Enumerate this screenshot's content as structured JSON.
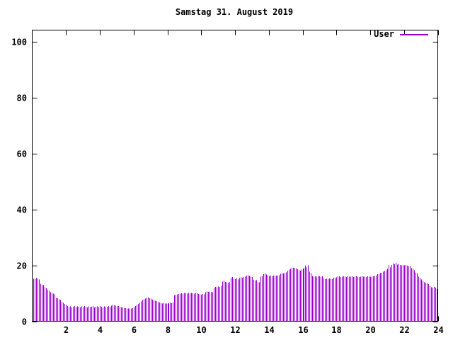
{
  "window": {
    "background": "#ffffff",
    "foreground": "#000000"
  },
  "chart_data": {
    "type": "bar",
    "title": "Samstag 31. August 2019",
    "xlabel": "",
    "ylabel": "",
    "xlim": [
      0,
      24
    ],
    "ylim": [
      0,
      104
    ],
    "x_ticks": [
      2,
      4,
      6,
      8,
      10,
      12,
      14,
      16,
      18,
      20,
      22,
      24
    ],
    "y_ticks": [
      0,
      20,
      40,
      60,
      80,
      100
    ],
    "grid": false,
    "legend_position": "top-right",
    "sample_interval_minutes": 5,
    "border_color": "#000000",
    "series": [
      {
        "name": "User",
        "color": "#9900cc",
        "style": "impulses",
        "values": [
          15.2,
          15.1,
          15.4,
          15.2,
          15.0,
          13.4,
          13.1,
          12.9,
          12.2,
          11.8,
          11.3,
          10.9,
          10.4,
          10.1,
          9.9,
          9.6,
          8.4,
          8.2,
          7.9,
          7.6,
          6.9,
          6.6,
          6.2,
          5.8,
          5.4,
          5.1,
          5.3,
          5.0,
          5.2,
          5.4,
          5.1,
          5.3,
          5.2,
          5.0,
          5.3,
          5.1,
          5.4,
          5.2,
          5.0,
          5.3,
          5.1,
          5.2,
          5.4,
          5.0,
          5.2,
          5.3,
          5.1,
          5.4,
          5.2,
          5.0,
          5.3,
          5.1,
          5.2,
          5.4,
          5.2,
          5.6,
          5.8,
          5.7,
          5.6,
          5.5,
          5.4,
          5.2,
          5.0,
          4.9,
          4.8,
          4.7,
          4.6,
          4.5,
          4.6,
          4.5,
          4.7,
          5.0,
          5.4,
          5.8,
          6.2,
          6.6,
          7.1,
          7.6,
          7.9,
          8.1,
          8.4,
          8.5,
          8.3,
          8.1,
          7.7,
          7.5,
          7.4,
          7.2,
          6.9,
          6.7,
          6.5,
          6.4,
          6.5,
          6.3,
          6.4,
          6.5,
          6.4,
          6.6,
          6.5,
          6.7,
          9.3,
          9.5,
          9.6,
          9.8,
          9.9,
          10.0,
          9.9,
          10.1,
          10.0,
          9.9,
          10.1,
          10.0,
          10.2,
          10.0,
          9.9,
          10.1,
          10.0,
          9.8,
          9.6,
          9.5,
          9.7,
          9.6,
          10.4,
          10.6,
          10.5,
          10.7,
          10.5,
          10.4,
          12.1,
          12.3,
          12.2,
          12.4,
          12.3,
          12.5,
          14.2,
          14.4,
          14.1,
          13.9,
          13.8,
          14.0,
          15.6,
          15.8,
          15.2,
          15.1,
          15.3,
          15.0,
          15.5,
          15.7,
          15.6,
          15.8,
          16.0,
          16.3,
          16.5,
          16.2,
          16.0,
          15.9,
          14.8,
          14.6,
          14.7,
          13.9,
          14.0,
          16.0,
          16.2,
          16.8,
          17.1,
          16.7,
          16.5,
          16.2,
          16.4,
          16.1,
          16.3,
          16.2,
          16.4,
          16.3,
          16.5,
          17.0,
          17.2,
          17.1,
          17.3,
          17.5,
          18.0,
          18.5,
          18.8,
          19.0,
          19.2,
          19.1,
          18.9,
          18.6,
          18.3,
          18.1,
          18.5,
          18.8,
          19.2,
          19.9,
          19.3,
          20.0,
          17.8,
          17.2,
          16.2,
          16.0,
          16.1,
          16.0,
          16.2,
          16.1,
          16.0,
          16.1,
          15.3,
          15.1,
          15.2,
          15.1,
          15.3,
          15.2,
          15.1,
          15.6,
          15.5,
          15.7,
          16.0,
          16.1,
          15.9,
          16.0,
          16.1,
          16.0,
          15.9,
          16.1,
          16.0,
          16.0,
          16.1,
          15.9,
          16.0,
          16.1,
          16.0,
          15.9,
          16.0,
          16.1,
          16.0,
          16.0,
          15.9,
          16.1,
          16.0,
          16.0,
          16.0,
          16.1,
          16.2,
          16.4,
          16.8,
          17.0,
          17.2,
          17.4,
          17.7,
          18.0,
          18.3,
          18.8,
          20.2,
          19.3,
          20.2,
          20.6,
          20.4,
          20.9,
          20.3,
          20.5,
          20.1,
          20.0,
          20.2,
          20.0,
          20.1,
          19.9,
          19.7,
          19.6,
          19.0,
          18.7,
          18.3,
          17.4,
          17.1,
          16.0,
          15.5,
          14.9,
          14.5,
          14.0,
          13.8,
          13.6,
          13.3,
          12.5,
          12.2,
          12.0,
          12.3,
          12.1,
          11.5,
          11.0
        ]
      }
    ]
  }
}
